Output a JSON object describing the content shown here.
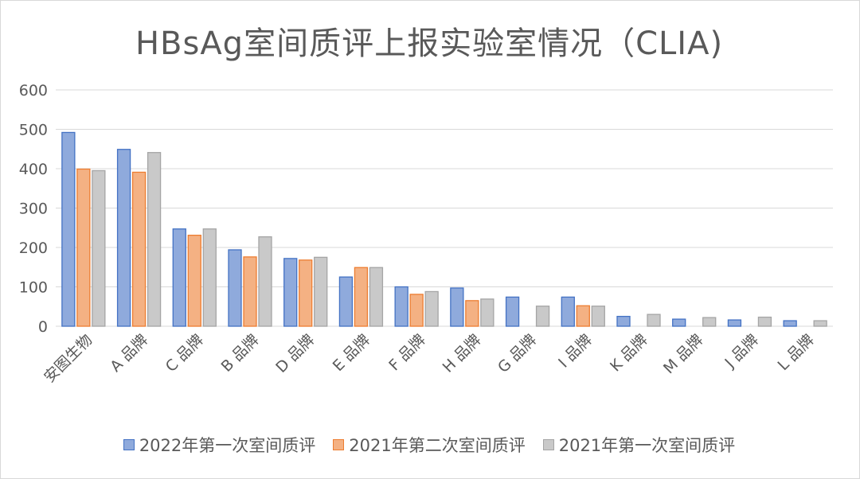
{
  "chart_data": {
    "type": "bar",
    "title": "HBsAg室间质评上报实验室情况（CLIA)",
    "xlabel": "",
    "ylabel": "",
    "ylim": [
      0,
      600
    ],
    "yticks": [
      0,
      100,
      200,
      300,
      400,
      500,
      600
    ],
    "grid": true,
    "legend_position": "bottom",
    "categories": [
      "安图生物",
      "A 品牌",
      "C 品牌",
      "B 品牌",
      "D 品牌",
      "E 品牌",
      "F 品牌",
      "H 品牌",
      "G 品牌",
      "I 品牌",
      "K 品牌",
      "M 品牌",
      "J 品牌",
      "L 品牌"
    ],
    "series": [
      {
        "name": "2022年第一次室间质评",
        "color": "#8faadc",
        "border": "#4472c4",
        "values": [
          492,
          449,
          247,
          194,
          172,
          125,
          100,
          97,
          74,
          74,
          25,
          18,
          16,
          14
        ]
      },
      {
        "name": "2021年第二次室间质评",
        "color": "#f4b183",
        "border": "#ed7d31",
        "values": [
          399,
          391,
          231,
          176,
          168,
          149,
          81,
          65,
          null,
          52,
          null,
          null,
          null,
          null
        ]
      },
      {
        "name": "2021年第一次室间质评",
        "color": "#c9c9c9",
        "border": "#a5a5a5",
        "values": [
          395,
          441,
          247,
          227,
          175,
          149,
          88,
          69,
          51,
          51,
          30,
          22,
          23,
          14
        ]
      }
    ]
  }
}
